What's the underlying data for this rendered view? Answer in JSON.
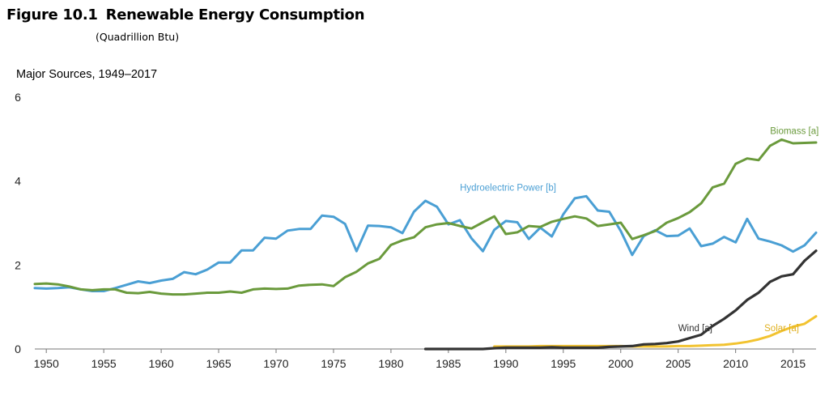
{
  "figure": {
    "number": "Figure 10.1",
    "title": "Renewable Energy Consumption",
    "subtitle": "(Quadrillion Btu)",
    "panel_title": "Major Sources, 1949–2017"
  },
  "chart_data": {
    "type": "line",
    "title": "Renewable Energy Consumption",
    "subtitle": "(Quadrillion Btu)",
    "panel_title": "Major Sources, 1949–2017",
    "xlabel": "",
    "ylabel": "",
    "xlim": [
      1949,
      2017
    ],
    "ylim": [
      0,
      6
    ],
    "x_ticks": [
      1950,
      1955,
      1960,
      1965,
      1970,
      1975,
      1980,
      1985,
      1990,
      1995,
      2000,
      2005,
      2010,
      2015
    ],
    "y_ticks": [
      0,
      2,
      4,
      6
    ],
    "grid": false,
    "legend": "inline labels",
    "series": [
      {
        "name": "Hydroelectric Power [b]",
        "color": "#4a9fd4",
        "x": [
          1949,
          1950,
          1951,
          1952,
          1953,
          1954,
          1955,
          1956,
          1957,
          1958,
          1959,
          1960,
          1961,
          1962,
          1963,
          1964,
          1965,
          1966,
          1967,
          1968,
          1969,
          1970,
          1971,
          1972,
          1973,
          1974,
          1975,
          1976,
          1977,
          1978,
          1979,
          1980,
          1981,
          1982,
          1983,
          1984,
          1985,
          1986,
          1987,
          1988,
          1989,
          1990,
          1991,
          1992,
          1993,
          1994,
          1995,
          1996,
          1997,
          1998,
          1999,
          2000,
          2001,
          2002,
          2003,
          2004,
          2005,
          2006,
          2007,
          2008,
          2009,
          2010,
          2011,
          2012,
          2013,
          2014,
          2015,
          2016,
          2017
        ],
        "values": [
          1.45,
          1.44,
          1.45,
          1.47,
          1.42,
          1.38,
          1.38,
          1.45,
          1.53,
          1.61,
          1.57,
          1.63,
          1.67,
          1.83,
          1.78,
          1.89,
          2.06,
          2.06,
          2.35,
          2.35,
          2.65,
          2.63,
          2.82,
          2.86,
          2.86,
          3.18,
          3.15,
          2.98,
          2.33,
          2.94,
          2.93,
          2.9,
          2.76,
          3.27,
          3.53,
          3.39,
          2.97,
          3.07,
          2.64,
          2.33,
          2.84,
          3.05,
          3.02,
          2.62,
          2.89,
          2.68,
          3.21,
          3.59,
          3.64,
          3.3,
          3.27,
          2.81,
          2.24,
          2.69,
          2.83,
          2.69,
          2.7,
          2.87,
          2.45,
          2.51,
          2.67,
          2.54,
          3.1,
          2.63,
          2.56,
          2.47,
          2.32,
          2.47,
          2.77
        ],
        "label_year": 1986,
        "label_value": 3.85
      },
      {
        "name": "Biomass [a]",
        "color": "#6a9a3c",
        "x": [
          1949,
          1950,
          1951,
          1952,
          1953,
          1954,
          1955,
          1956,
          1957,
          1958,
          1959,
          1960,
          1961,
          1962,
          1963,
          1964,
          1965,
          1966,
          1967,
          1968,
          1969,
          1970,
          1971,
          1972,
          1973,
          1974,
          1975,
          1976,
          1977,
          1978,
          1979,
          1980,
          1981,
          1982,
          1983,
          1984,
          1985,
          1986,
          1987,
          1988,
          1989,
          1990,
          1991,
          1992,
          1993,
          1994,
          1995,
          1996,
          1997,
          1998,
          1999,
          2000,
          2001,
          2002,
          2003,
          2004,
          2005,
          2006,
          2007,
          2008,
          2009,
          2010,
          2011,
          2012,
          2013,
          2014,
          2015,
          2016,
          2017
        ],
        "values": [
          1.55,
          1.56,
          1.54,
          1.49,
          1.42,
          1.4,
          1.42,
          1.42,
          1.34,
          1.33,
          1.36,
          1.32,
          1.3,
          1.3,
          1.32,
          1.34,
          1.34,
          1.37,
          1.34,
          1.42,
          1.44,
          1.43,
          1.44,
          1.51,
          1.53,
          1.54,
          1.5,
          1.71,
          1.84,
          2.04,
          2.15,
          2.48,
          2.59,
          2.66,
          2.9,
          2.97,
          3.0,
          2.93,
          2.87,
          3.02,
          3.16,
          2.74,
          2.78,
          2.93,
          2.91,
          3.03,
          3.1,
          3.16,
          3.11,
          2.93,
          2.97,
          3.01,
          2.62,
          2.71,
          2.81,
          3.01,
          3.12,
          3.26,
          3.47,
          3.85,
          3.94,
          4.41,
          4.54,
          4.5,
          4.84,
          4.99,
          4.9,
          4.91,
          4.92
        ],
        "label_year": 2013,
        "label_value": 5.2
      },
      {
        "name": "Wind [a]",
        "color": "#333333",
        "x": [
          1983,
          1984,
          1985,
          1986,
          1987,
          1988,
          1989,
          1990,
          1991,
          1992,
          1993,
          1994,
          1995,
          1996,
          1997,
          1998,
          1999,
          2000,
          2001,
          2002,
          2003,
          2004,
          2005,
          2006,
          2007,
          2008,
          2009,
          2010,
          2011,
          2012,
          2013,
          2014,
          2015,
          2016,
          2017
        ],
        "values": [
          0.0,
          0.0,
          0.0,
          0.0,
          0.0,
          0.0,
          0.02,
          0.03,
          0.03,
          0.03,
          0.03,
          0.04,
          0.03,
          0.03,
          0.03,
          0.03,
          0.05,
          0.06,
          0.07,
          0.11,
          0.12,
          0.14,
          0.18,
          0.26,
          0.34,
          0.55,
          0.72,
          0.92,
          1.17,
          1.34,
          1.6,
          1.73,
          1.78,
          2.1,
          2.34
        ],
        "label_year": 2005,
        "label_value": 0.5
      },
      {
        "name": "Solar [a]",
        "color": "#f2c330",
        "x": [
          1989,
          1990,
          1991,
          1992,
          1993,
          1994,
          1995,
          1996,
          1997,
          1998,
          1999,
          2000,
          2001,
          2002,
          2003,
          2004,
          2005,
          2006,
          2007,
          2008,
          2009,
          2010,
          2011,
          2012,
          2013,
          2014,
          2015,
          2016,
          2017
        ],
        "values": [
          0.06,
          0.06,
          0.06,
          0.06,
          0.07,
          0.07,
          0.07,
          0.07,
          0.07,
          0.07,
          0.07,
          0.07,
          0.06,
          0.06,
          0.06,
          0.06,
          0.07,
          0.07,
          0.08,
          0.09,
          0.1,
          0.13,
          0.17,
          0.23,
          0.31,
          0.43,
          0.53,
          0.6,
          0.78
        ],
        "label_year": 2012.5,
        "label_value": 0.5
      }
    ]
  }
}
